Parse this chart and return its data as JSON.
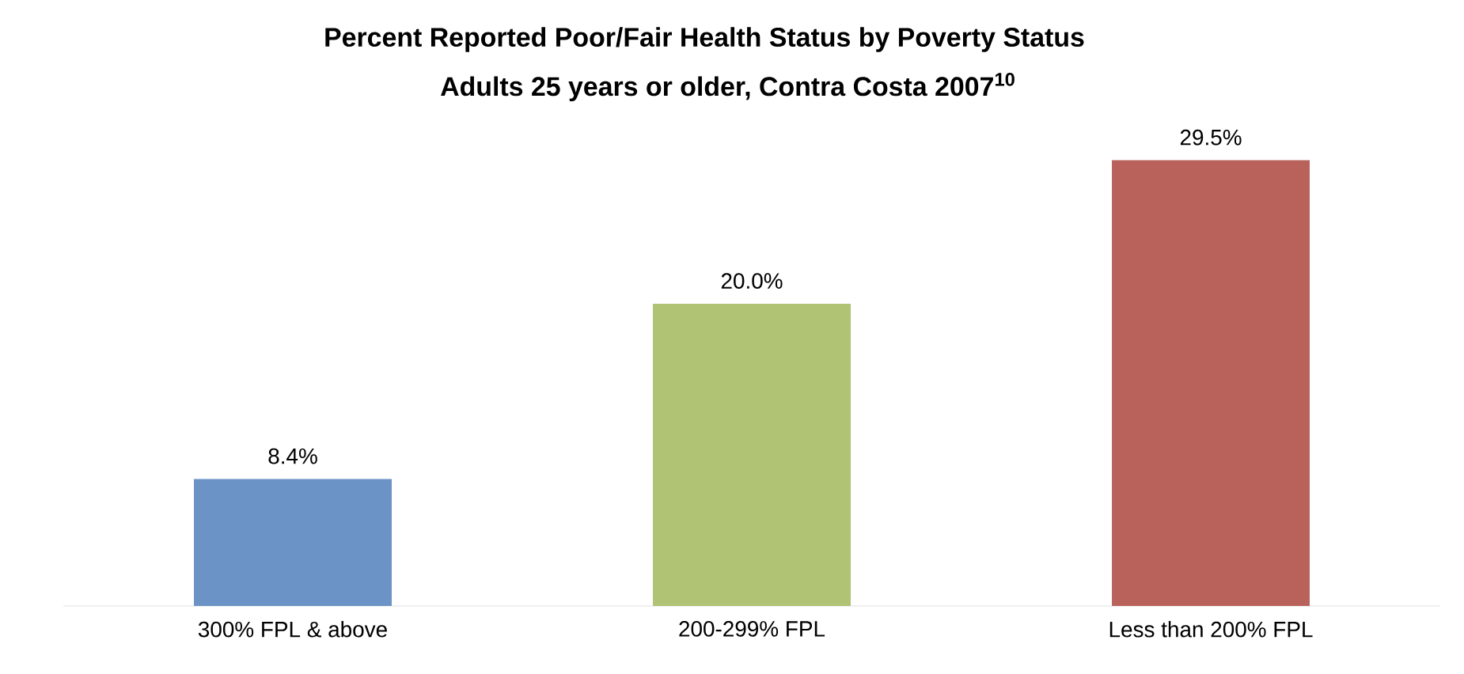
{
  "chart_data": {
    "type": "bar",
    "title": "Percent Reported Poor/Fair Health Status by Poverty Status",
    "subtitle": "Adults 25 years or older, Contra Costa 2007$^{10}$",
    "categories": [
      "300% FPL & above",
      "200-299% FPL",
      "Less than 200% FPL"
    ],
    "values": [
      8.4,
      20.0,
      29.5
    ],
    "colors": [
      "#6b93c6",
      "#b0c273",
      "#b9625c"
    ],
    "value_labels": [
      "8.4%",
      "20.0%",
      "29.5%"
    ]
  }
}
